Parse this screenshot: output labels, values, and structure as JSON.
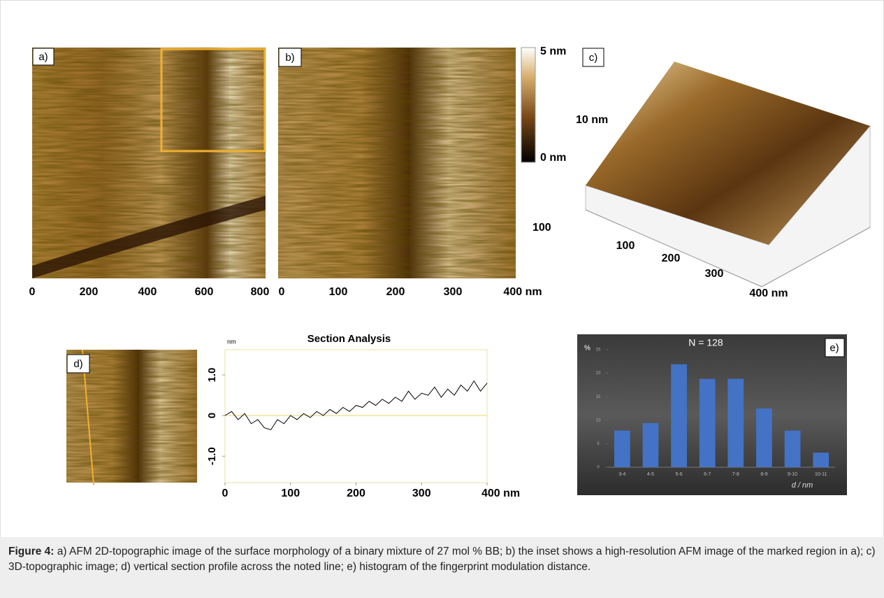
{
  "panels": {
    "a": {
      "label": "a)",
      "x_tick_labels": [
        "0",
        "200",
        "400",
        "600",
        "800"
      ]
    },
    "b": {
      "label": "b)",
      "x_tick_labels": [
        "0",
        "100",
        "200",
        "300",
        "400 nm"
      ],
      "y_tick_label": "100",
      "colorbar_max": "5 nm",
      "colorbar_min": "0 nm"
    },
    "c": {
      "label": "c)",
      "z_label": "10 nm",
      "x_tick_labels": [
        "100",
        "200",
        "300",
        "400 nm"
      ]
    },
    "d": {
      "label": "d)"
    },
    "e": {
      "label": "e)"
    }
  },
  "chart_data": [
    {
      "type": "line",
      "title": "Section Analysis",
      "y_unit": "nm",
      "x": [
        0,
        10,
        20,
        30,
        40,
        50,
        60,
        70,
        80,
        90,
        100,
        110,
        120,
        130,
        140,
        150,
        160,
        170,
        180,
        190,
        200,
        210,
        220,
        230,
        240,
        250,
        260,
        270,
        280,
        290,
        300,
        310,
        320,
        330,
        340,
        350,
        360,
        370,
        380,
        390,
        400
      ],
      "series": [
        {
          "color": "#000000",
          "values": [
            0.0,
            0.1,
            -0.1,
            0.05,
            -0.2,
            -0.1,
            -0.3,
            -0.35,
            -0.1,
            -0.2,
            0.0,
            -0.1,
            0.05,
            -0.05,
            0.1,
            0.0,
            0.15,
            0.05,
            0.2,
            0.1,
            0.25,
            0.2,
            0.35,
            0.25,
            0.4,
            0.3,
            0.45,
            0.35,
            0.6,
            0.4,
            0.55,
            0.5,
            0.7,
            0.45,
            0.65,
            0.5,
            0.75,
            0.6,
            0.85,
            0.6,
            0.8
          ]
        }
      ],
      "xlim": [
        0,
        400
      ],
      "ylim": [
        -1.65,
        1.62
      ],
      "xticks": [
        0,
        100,
        200,
        300,
        {
          "value": 400,
          "label": "400 nm"
        }
      ],
      "yticks": [
        {
          "value": -1,
          "label": "-1.0"
        },
        0,
        {
          "value": 1,
          "label": "1.0"
        }
      ],
      "zero_line_color": "#e8d870"
    },
    {
      "type": "bar",
      "title": "N = 128",
      "y_label": "%",
      "x_label": "d / nm",
      "categories": [
        "3-4",
        "4-5",
        "5-6",
        "6-7",
        "7-8",
        "8-9",
        "9-10",
        "10-11"
      ],
      "values": [
        7.8,
        9.4,
        21.9,
        18.8,
        18.8,
        12.5,
        7.8,
        3.1
      ],
      "color": "#4472c4",
      "ylim": [
        0,
        25
      ],
      "yticks": [
        0,
        5,
        10,
        15,
        20,
        25
      ]
    }
  ],
  "caption": {
    "label": "Figure 4:",
    "text": " a) AFM 2D-topographic image of the surface morphology of a binary mixture of 27 mol % BB; b) the inset shows a high-resolution AFM image of the marked region in a); c) 3D-topographic image; d) vertical section profile across the noted line; e) histogram of the fingerprint modulation distance."
  }
}
